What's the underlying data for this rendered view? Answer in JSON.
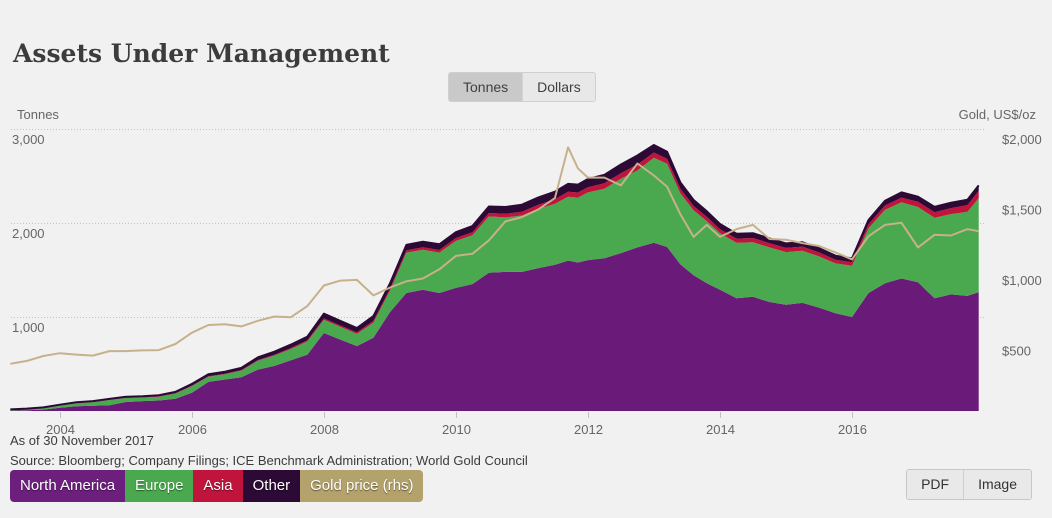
{
  "page": {
    "title": "Assets Under Management"
  },
  "toggle": {
    "options": [
      {
        "label": "Tonnes",
        "active": true
      },
      {
        "label": "Dollars",
        "active": false
      }
    ]
  },
  "axes": {
    "left_title": "Tonnes",
    "right_title": "Gold, US$/oz"
  },
  "footer": {
    "as_of": "As of 30 November 2017",
    "source": "Source: Bloomberg; Company Filings; ICE Benchmark Administration; World Gold Council"
  },
  "legend": [
    {
      "label": "North America",
      "color": "#6d1f7d"
    },
    {
      "label": "Europe",
      "color": "#4aa84e"
    },
    {
      "label": "Asia",
      "color": "#c0143c"
    },
    {
      "label": "Other",
      "color": "#2d0a36"
    },
    {
      "label": "Gold price (rhs)",
      "color": "#b3a26b"
    }
  ],
  "export_buttons": [
    {
      "label": "PDF"
    },
    {
      "label": "Image"
    }
  ],
  "chart_data": {
    "type": "area",
    "stacking": "normal",
    "title": "Assets Under Management",
    "x_range": [
      2003.26,
      2018.0
    ],
    "x": [
      2003.25,
      2003.5,
      2003.75,
      2004,
      2004.25,
      2004.5,
      2004.75,
      2005,
      2005.25,
      2005.5,
      2005.75,
      2006,
      2006.25,
      2006.5,
      2006.75,
      2007,
      2007.25,
      2007.5,
      2007.75,
      2008,
      2008.25,
      2008.5,
      2008.75,
      2009,
      2009.25,
      2009.5,
      2009.75,
      2010,
      2010.25,
      2010.5,
      2010.75,
      2011,
      2011.25,
      2011.5,
      2011.7,
      2011.85,
      2012,
      2012.25,
      2012.5,
      2012.75,
      2013,
      2013.2,
      2013.4,
      2013.6,
      2013.8,
      2014,
      2014.25,
      2014.5,
      2014.75,
      2015,
      2015.25,
      2015.5,
      2015.75,
      2016,
      2016.25,
      2016.5,
      2016.75,
      2017,
      2017.25,
      2017.5,
      2017.75,
      2017.92
    ],
    "series": [
      {
        "name": "North America",
        "type": "area",
        "axis": "left",
        "color": "#6a1a78",
        "values": [
          3,
          8,
          15,
          35,
          50,
          55,
          62,
          96,
          105,
          112,
          130,
          195,
          310,
          335,
          360,
          440,
          480,
          540,
          600,
          830,
          760,
          690,
          780,
          1050,
          1255,
          1290,
          1255,
          1310,
          1350,
          1470,
          1480,
          1480,
          1520,
          1555,
          1600,
          1580,
          1605,
          1625,
          1680,
          1740,
          1790,
          1745,
          1560,
          1445,
          1360,
          1290,
          1200,
          1215,
          1160,
          1130,
          1150,
          1100,
          1040,
          1000,
          1255,
          1360,
          1410,
          1370,
          1200,
          1240,
          1225,
          1265
        ]
      },
      {
        "name": "Europe",
        "type": "area",
        "axis": "left",
        "color": "#4aa84e",
        "values": [
          12,
          15,
          18,
          25,
          35,
          40,
          55,
          42,
          38,
          40,
          55,
          70,
          55,
          55,
          70,
          95,
          110,
          120,
          140,
          140,
          135,
          130,
          160,
          230,
          430,
          425,
          430,
          500,
          520,
          600,
          580,
          600,
          630,
          650,
          680,
          690,
          720,
          740,
          790,
          820,
          905,
          885,
          755,
          690,
          660,
          600,
          590,
          580,
          580,
          560,
          555,
          545,
          530,
          545,
          690,
          780,
          810,
          800,
          855,
          855,
          895,
          1000
        ]
      },
      {
        "name": "Asia",
        "type": "area",
        "axis": "left",
        "color": "#c0143c",
        "values": [
          0,
          0,
          1,
          1,
          2,
          2,
          3,
          3,
          3,
          4,
          4,
          5,
          5,
          6,
          6,
          8,
          9,
          10,
          12,
          15,
          15,
          16,
          18,
          20,
          24,
          26,
          28,
          30,
          32,
          36,
          38,
          40,
          44,
          48,
          52,
          54,
          55,
          58,
          60,
          62,
          55,
          52,
          48,
          46,
          45,
          44,
          44,
          45,
          45,
          45,
          44,
          42,
          40,
          38,
          42,
          46,
          50,
          55,
          60,
          64,
          70,
          76
        ]
      },
      {
        "name": "Other",
        "type": "area",
        "axis": "left",
        "color": "#2d0a36",
        "values": [
          2,
          3,
          4,
          6,
          7,
          8,
          9,
          10,
          11,
          12,
          14,
          18,
          20,
          22,
          24,
          28,
          32,
          36,
          40,
          50,
          48,
          46,
          52,
          55,
          58,
          60,
          60,
          62,
          66,
          70,
          72,
          75,
          78,
          80,
          84,
          85,
          88,
          90,
          92,
          96,
          80,
          75,
          68,
          64,
          60,
          55,
          52,
          52,
          50,
          48,
          46,
          45,
          42,
          40,
          45,
          50,
          55,
          55,
          56,
          57,
          58,
          59
        ]
      },
      {
        "name": "Gold price (rhs)",
        "type": "line",
        "axis": "right",
        "color": "#c7b18b",
        "values": [
          335,
          355,
          390,
          410,
          400,
          393,
          425,
          425,
          430,
          432,
          475,
          555,
          610,
          615,
          600,
          640,
          670,
          665,
          745,
          890,
          925,
          930,
          820,
          875,
          920,
          940,
          1005,
          1100,
          1115,
          1210,
          1345,
          1375,
          1430,
          1510,
          1870,
          1720,
          1655,
          1655,
          1600,
          1755,
          1670,
          1590,
          1395,
          1235,
          1320,
          1235,
          1290,
          1320,
          1220,
          1215,
          1190,
          1170,
          1125,
          1075,
          1240,
          1320,
          1335,
          1160,
          1250,
          1245,
          1290,
          1275
        ]
      }
    ],
    "left_axis": {
      "title": "Tonnes",
      "range": [
        0,
        3000
      ],
      "ticks": [
        1000,
        2000,
        3000
      ],
      "tick_labels": [
        "1,000",
        "2,000",
        "3,000"
      ]
    },
    "right_axis": {
      "title": "Gold, US$/oz",
      "range": [
        0,
        2000
      ],
      "ticks": [
        500,
        1000,
        1500,
        2000
      ],
      "tick_labels": [
        "$500",
        "$1,000",
        "$1,500",
        "$2,000"
      ]
    },
    "x_axis": {
      "ticks": [
        2004,
        2006,
        2008,
        2010,
        2012,
        2014,
        2016
      ],
      "tick_labels": [
        "2004",
        "2006",
        "2008",
        "2010",
        "2012",
        "2014",
        "2016"
      ]
    },
    "grid": "dotted-horizontal",
    "legend_position": "bottom-left"
  }
}
